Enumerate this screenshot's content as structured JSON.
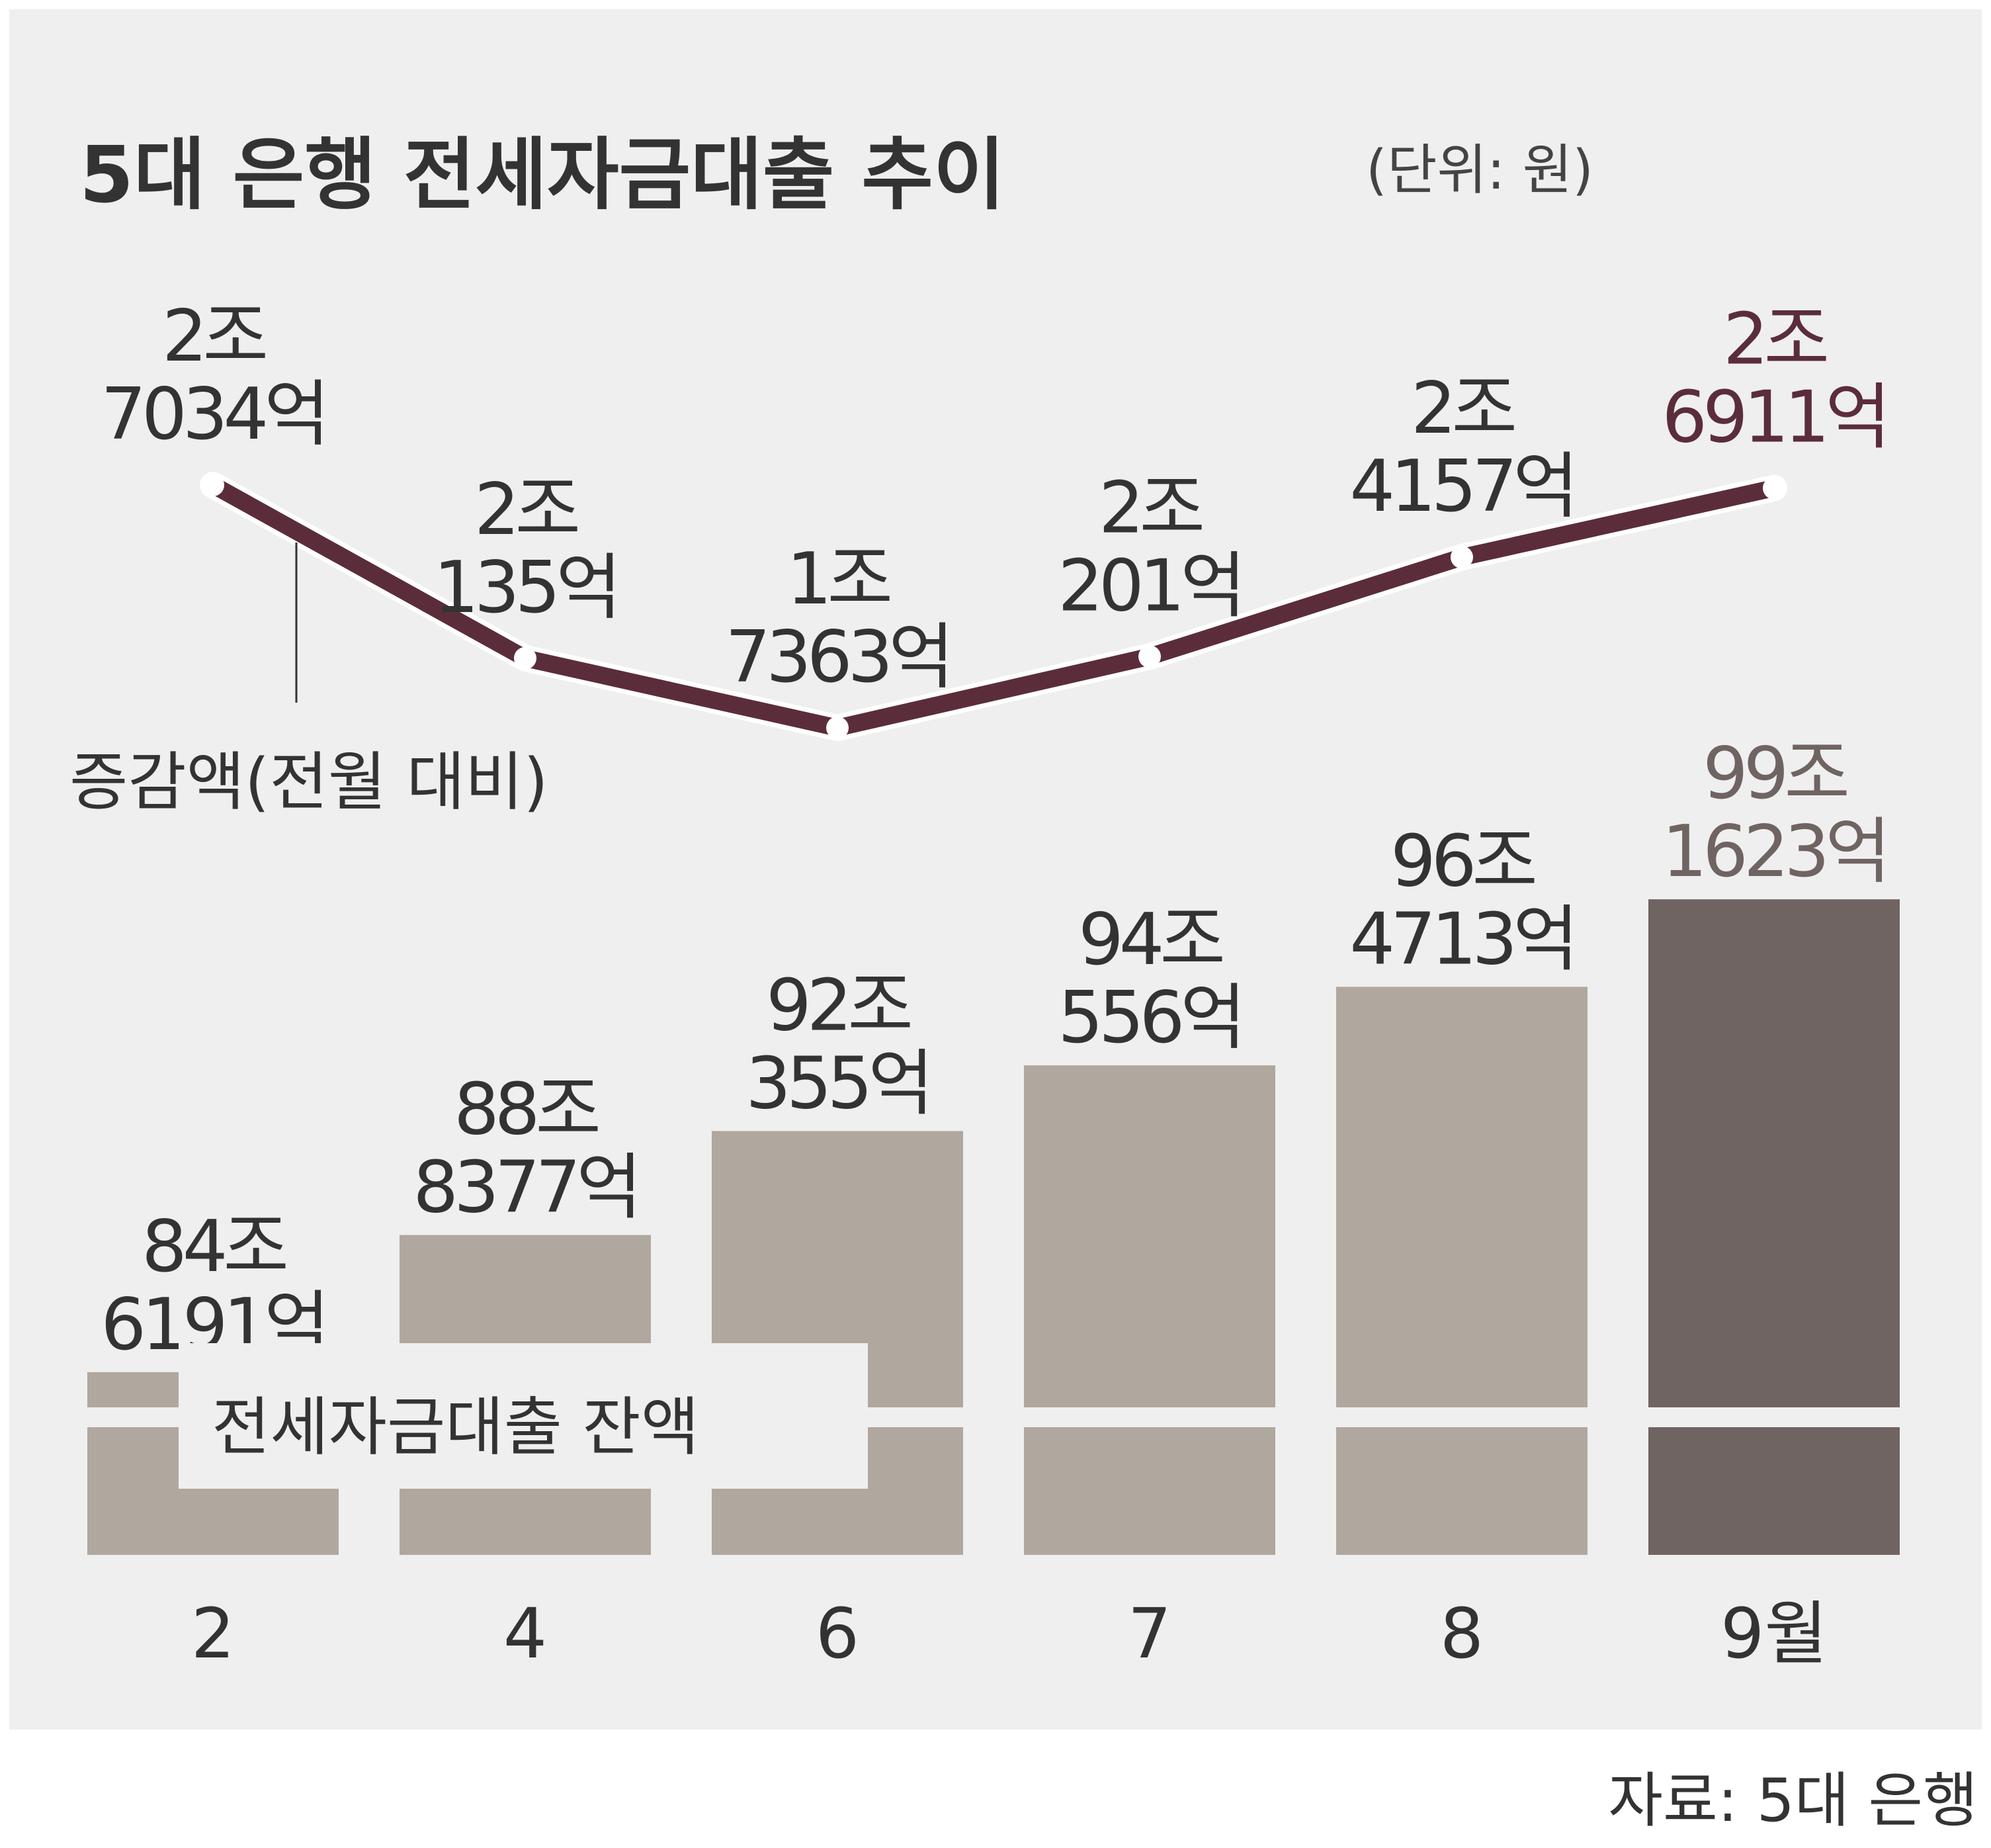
{
  "title": "5대 은행 전세자금대출 추이",
  "unit_note": "(단위: 원)",
  "source": "자료: 5대 은행",
  "colors": {
    "panel_bg": "#efeff0",
    "bar": "#b0a79e",
    "bar_highlight": "#6f6461",
    "line": "#5b2d3a",
    "text": "#333333",
    "marker": "#ffffff"
  },
  "chart_data": [
    {
      "type": "bar",
      "categories": [
        "2",
        "4",
        "6",
        "7",
        "8",
        "9월"
      ],
      "series": [
        {
          "name": "전세자금대출 잔액",
          "values": [
            846191,
            888377,
            920355,
            940556,
            964713,
            991623
          ]
        }
      ],
      "value_unit": "억 원",
      "value_labels": [
        [
          "84조",
          "6191억"
        ],
        [
          "88조",
          "8377억"
        ],
        [
          "92조",
          "355억"
        ],
        [
          "94조",
          "556억"
        ],
        [
          "96조",
          "4713억"
        ],
        [
          "99조",
          "1623억"
        ]
      ],
      "highlight_index": 5,
      "legend": "전세자금대출 잔액",
      "legend_position": "bottom-left",
      "axis_break": true,
      "grid": false
    },
    {
      "type": "line",
      "categories": [
        "2",
        "4",
        "6",
        "7",
        "8",
        "9월"
      ],
      "series": [
        {
          "name": "증감액(전월 대비)",
          "values": [
            27034,
            20135,
            17363,
            20201,
            24157,
            26911
          ]
        }
      ],
      "value_unit": "억 원",
      "value_labels": [
        [
          "2조",
          "7034억"
        ],
        [
          "2조",
          "135억"
        ],
        [
          "1조",
          "7363억"
        ],
        [
          "2조",
          "201억"
        ],
        [
          "2조",
          "4157억"
        ],
        [
          "2조",
          "6911억"
        ]
      ],
      "highlight_index": 5,
      "annotation": "증감액(전월 대비)",
      "grid": false
    }
  ]
}
